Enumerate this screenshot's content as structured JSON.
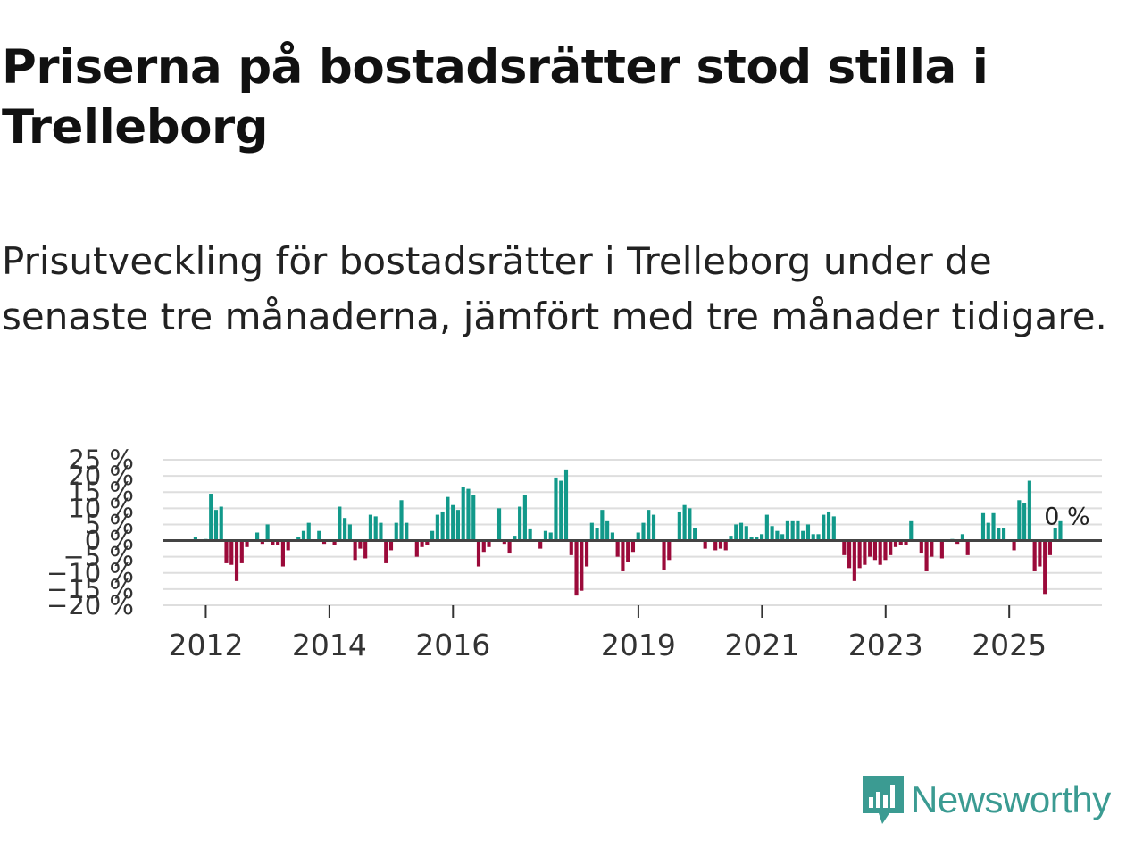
{
  "title": "Priserna på bostadsrätter stod stilla i Trelleborg",
  "subtitle": "Prisutveckling för bostadsrätter i Trelleborg under de senaste tre månaderna, jämfört med tre månader tidigare.",
  "brand": {
    "name": "Newsworthy",
    "icon": "newsworthy-logo-icon",
    "color": "#3b9b92"
  },
  "colors": {
    "positive": "#12998a",
    "negative": "#9b0a3a",
    "grid": "#dedede",
    "zero_line": "#444444"
  },
  "chart_data": {
    "type": "bar",
    "title": "Priserna på bostadsrätter stod stilla i Trelleborg",
    "xlabel": "",
    "ylabel": "",
    "ylim": [
      -20,
      25
    ],
    "yticks": [
      -20,
      -15,
      -10,
      -5,
      0,
      5,
      10,
      15,
      20,
      25
    ],
    "ytick_labels": [
      "−20 %",
      "−15 %",
      "−10 %",
      "−5 %",
      "0 %",
      "5 %",
      "10 %",
      "15 %",
      "20 %",
      "25 %"
    ],
    "x_range": [
      2011.3,
      2026.5
    ],
    "xticks": [
      2012,
      2014,
      2016,
      2019,
      2021,
      2023,
      2025
    ],
    "xtick_labels": [
      "2012",
      "2014",
      "2016",
      "2019",
      "2021",
      "2023",
      "2025"
    ],
    "grid": true,
    "start_year": 2011.75,
    "step": 0.0833,
    "last_label": "0 %",
    "values": [
      0,
      1,
      0,
      0.5,
      14.5,
      9.5,
      10.5,
      -7,
      -7.5,
      -12.5,
      -7,
      -2,
      0,
      2.5,
      -1,
      5,
      -1.5,
      -1.5,
      -8,
      -3,
      0,
      1,
      3,
      5.5,
      0,
      3,
      -1,
      0,
      -1.5,
      10.5,
      7,
      5,
      -6,
      -2.5,
      -5.5,
      8,
      7.5,
      5.5,
      -7,
      -3,
      5.5,
      12.5,
      5.5,
      0,
      -5,
      -2,
      -1.5,
      3,
      8,
      9,
      13.5,
      11,
      9.5,
      16.5,
      16,
      14,
      -8,
      -3.5,
      -2,
      0,
      10,
      -1,
      -4,
      1.5,
      10.5,
      14,
      3.5,
      0,
      -2.5,
      3,
      2.5,
      19.5,
      18.5,
      22,
      -4.5,
      -17,
      -15.5,
      -8,
      5.5,
      4,
      9.5,
      6,
      2.5,
      -5,
      -9.5,
      -6.5,
      -3.5,
      2.5,
      5.5,
      9.5,
      8,
      0,
      -9,
      -6,
      0,
      9,
      11,
      10,
      4,
      0,
      -2.5,
      0,
      -3,
      -2.5,
      -3,
      1.5,
      5,
      5.5,
      4.5,
      1,
      1,
      2,
      8,
      4.5,
      3,
      2,
      6,
      6,
      6,
      3,
      5,
      2,
      2,
      8,
      9,
      7.5,
      0,
      -4.5,
      -8.5,
      -12.5,
      -8.5,
      -7.5,
      -5,
      -6,
      -7.5,
      -6,
      -4.5,
      -2,
      -1.5,
      -1.5,
      6,
      0,
      -4,
      -9.5,
      -5,
      0,
      -5.5,
      0,
      0.5,
      -1,
      2,
      -4.5,
      0,
      0,
      8.5,
      5.5,
      8.5,
      4,
      4,
      0,
      -3,
      12.5,
      11.5,
      18.5,
      -9.5,
      -8,
      -16.5,
      -4.5,
      4,
      6,
      0
    ]
  }
}
